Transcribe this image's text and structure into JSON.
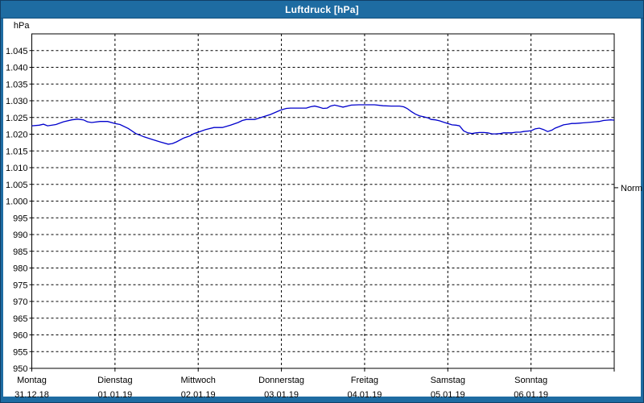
{
  "window": {
    "title": "Luftdruck [hPa]"
  },
  "chart_data": {
    "type": "line",
    "title": "Luftdruck [hPa]",
    "ylabel": "hPa",
    "xlabel": "",
    "ylim": [
      950,
      1050
    ],
    "ytick_step": 5,
    "ytick_label_min": 950,
    "ytick_label_max": 1045,
    "grid": {
      "show": true,
      "style": "dashed",
      "color": "#000000"
    },
    "legend_position": "none",
    "x_axis": {
      "unit": "days",
      "span_days": 7,
      "days": [
        {
          "day": "Montag",
          "date": "31.12.18"
        },
        {
          "day": "Dienstag",
          "date": "01.01.19"
        },
        {
          "day": "Mittwoch",
          "date": "02.01.19"
        },
        {
          "day": "Donnerstag",
          "date": "03.01.19"
        },
        {
          "day": "Freitag",
          "date": "04.01.19"
        },
        {
          "day": "Samstag",
          "date": "05.01.19"
        },
        {
          "day": "Sonntag",
          "date": "06.01.19"
        }
      ]
    },
    "normal_marker": {
      "label": "Normal",
      "value_hpa": 1004
    },
    "series": [
      {
        "name": "Luftdruck",
        "color": "#0000cc",
        "points_day_value": [
          [
            0.0,
            1022.5
          ],
          [
            0.09,
            1022.7
          ],
          [
            0.14,
            1023.0
          ],
          [
            0.19,
            1022.5
          ],
          [
            0.29,
            1022.9
          ],
          [
            0.38,
            1023.7
          ],
          [
            0.48,
            1024.3
          ],
          [
            0.55,
            1024.5
          ],
          [
            0.62,
            1024.3
          ],
          [
            0.67,
            1023.7
          ],
          [
            0.72,
            1023.5
          ],
          [
            0.82,
            1023.8
          ],
          [
            0.91,
            1023.8
          ],
          [
            1.0,
            1023.2
          ],
          [
            1.06,
            1022.9
          ],
          [
            1.16,
            1021.7
          ],
          [
            1.25,
            1020.2
          ],
          [
            1.35,
            1019.2
          ],
          [
            1.45,
            1018.4
          ],
          [
            1.54,
            1017.7
          ],
          [
            1.64,
            1017.0
          ],
          [
            1.69,
            1017.2
          ],
          [
            1.74,
            1017.7
          ],
          [
            1.83,
            1018.9
          ],
          [
            1.9,
            1019.5
          ],
          [
            1.95,
            1020.2
          ],
          [
            2.0,
            1020.6
          ],
          [
            2.09,
            1021.4
          ],
          [
            2.19,
            1022.0
          ],
          [
            2.29,
            1022.0
          ],
          [
            2.39,
            1022.7
          ],
          [
            2.48,
            1023.5
          ],
          [
            2.53,
            1024.1
          ],
          [
            2.58,
            1024.4
          ],
          [
            2.68,
            1024.4
          ],
          [
            2.77,
            1025.1
          ],
          [
            2.87,
            1025.9
          ],
          [
            2.97,
            1027.0
          ],
          [
            3.0,
            1027.3
          ],
          [
            3.06,
            1027.7
          ],
          [
            3.11,
            1027.8
          ],
          [
            3.21,
            1027.8
          ],
          [
            3.3,
            1027.8
          ],
          [
            3.35,
            1028.2
          ],
          [
            3.4,
            1028.4
          ],
          [
            3.45,
            1028.1
          ],
          [
            3.5,
            1027.7
          ],
          [
            3.55,
            1027.8
          ],
          [
            3.59,
            1028.4
          ],
          [
            3.64,
            1028.7
          ],
          [
            3.69,
            1028.4
          ],
          [
            3.74,
            1028.1
          ],
          [
            3.84,
            1028.7
          ],
          [
            3.93,
            1028.8
          ],
          [
            4.0,
            1028.8
          ],
          [
            4.12,
            1028.8
          ],
          [
            4.22,
            1028.5
          ],
          [
            4.32,
            1028.4
          ],
          [
            4.42,
            1028.4
          ],
          [
            4.47,
            1028.2
          ],
          [
            4.51,
            1027.7
          ],
          [
            4.56,
            1026.8
          ],
          [
            4.61,
            1026.0
          ],
          [
            4.66,
            1025.5
          ],
          [
            4.71,
            1025.2
          ],
          [
            4.76,
            1024.9
          ],
          [
            4.8,
            1024.4
          ],
          [
            4.85,
            1024.3
          ],
          [
            4.9,
            1024.0
          ],
          [
            4.95,
            1023.6
          ],
          [
            5.0,
            1023.2
          ],
          [
            5.05,
            1022.8
          ],
          [
            5.1,
            1022.7
          ],
          [
            5.14,
            1022.5
          ],
          [
            5.19,
            1021.0
          ],
          [
            5.24,
            1020.4
          ],
          [
            5.29,
            1020.2
          ],
          [
            5.34,
            1020.4
          ],
          [
            5.38,
            1020.5
          ],
          [
            5.43,
            1020.5
          ],
          [
            5.48,
            1020.4
          ],
          [
            5.53,
            1020.1
          ],
          [
            5.58,
            1020.1
          ],
          [
            5.63,
            1020.2
          ],
          [
            5.67,
            1020.4
          ],
          [
            5.72,
            1020.4
          ],
          [
            5.77,
            1020.4
          ],
          [
            5.82,
            1020.6
          ],
          [
            5.87,
            1020.6
          ],
          [
            5.91,
            1020.8
          ],
          [
            6.0,
            1021.0
          ],
          [
            6.05,
            1021.6
          ],
          [
            6.1,
            1021.8
          ],
          [
            6.15,
            1021.4
          ],
          [
            6.2,
            1020.8
          ],
          [
            6.25,
            1021.2
          ],
          [
            6.29,
            1021.8
          ],
          [
            6.34,
            1022.3
          ],
          [
            6.39,
            1022.8
          ],
          [
            6.44,
            1023.0
          ],
          [
            6.49,
            1023.2
          ],
          [
            6.53,
            1023.2
          ],
          [
            6.58,
            1023.3
          ],
          [
            6.63,
            1023.4
          ],
          [
            6.68,
            1023.5
          ],
          [
            6.72,
            1023.6
          ],
          [
            6.77,
            1023.7
          ],
          [
            6.82,
            1023.8
          ],
          [
            6.87,
            1024.1
          ],
          [
            6.91,
            1024.2
          ],
          [
            6.96,
            1024.3
          ],
          [
            7.0,
            1024.2
          ]
        ]
      }
    ],
    "colors": {
      "titlebar_bg": "#1e6ca2",
      "titlebar_text": "#ffffff",
      "frame": "#1e6ca2",
      "plot_bg": "#ffffff",
      "axis": "#000000",
      "line": "#0000cc"
    }
  }
}
